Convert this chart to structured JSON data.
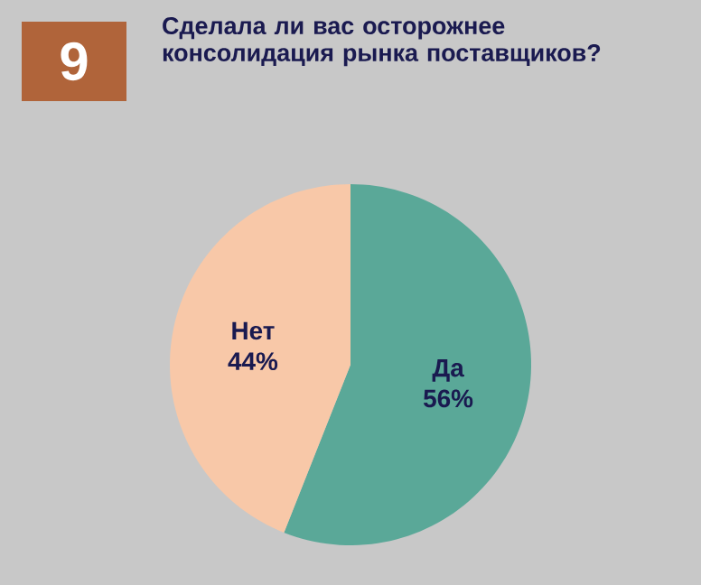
{
  "chart_data": {
    "type": "pie",
    "title": "Сделала ли вас  осторожнее консолидация рынка поставщиков?",
    "annotations": [
      "9"
    ],
    "categories": [
      "Да",
      "Нет"
    ],
    "values": [
      56,
      44
    ],
    "value_labels": [
      "56%",
      "44%"
    ],
    "colors": [
      "#5aa898",
      "#f8c8a8"
    ]
  }
}
